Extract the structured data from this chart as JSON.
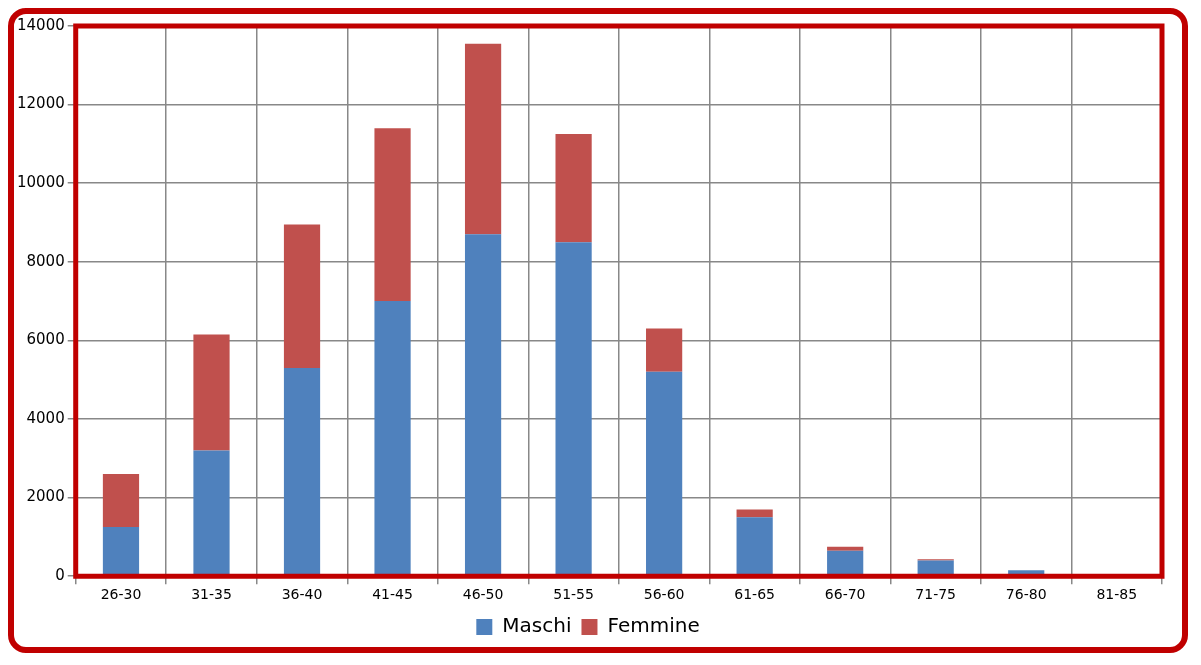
{
  "chart_data": {
    "type": "bar",
    "stacked": true,
    "categories": [
      "26-30",
      "31-35",
      "36-40",
      "41-45",
      "46-50",
      "51-55",
      "56-60",
      "61-65",
      "66-70",
      "71-75",
      "76-80",
      "81-85"
    ],
    "series": [
      {
        "name": "Maschi",
        "color": "#4f81bd",
        "values": [
          1250,
          3200,
          5300,
          7000,
          8700,
          8500,
          5200,
          1500,
          650,
          400,
          150,
          0
        ]
      },
      {
        "name": "Femmine",
        "color": "#c0504d",
        "values": [
          1350,
          2950,
          3650,
          4400,
          4850,
          2750,
          1100,
          200,
          100,
          30,
          null,
          0
        ]
      }
    ],
    "ylim": [
      0,
      14000
    ],
    "yticks": [
      0,
      2000,
      4000,
      6000,
      8000,
      10000,
      12000,
      14000
    ],
    "grid": true,
    "legend": "bottom"
  }
}
